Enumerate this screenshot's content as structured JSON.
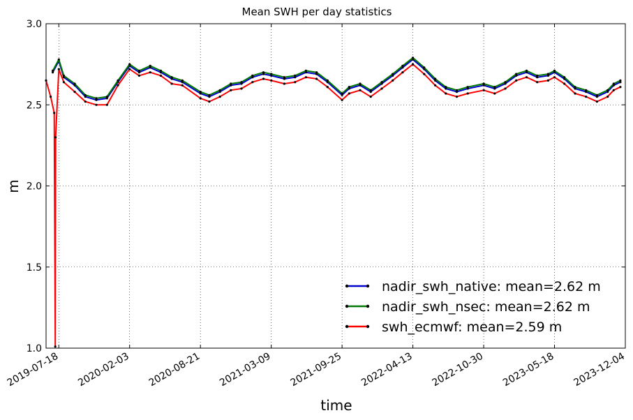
{
  "chart_data": {
    "type": "line",
    "title": "Mean SWH per day statistics",
    "xlabel": "time",
    "ylabel": "m",
    "x_ticks": [
      "2019-07-18",
      "2020-02-03",
      "2020-08-21",
      "2021-03-09",
      "2021-09-25",
      "2022-04-13",
      "2022-10-30",
      "2023-05-18",
      "2023-12-04"
    ],
    "y_ticks": [
      "1.0",
      "1.5",
      "2.0",
      "2.5",
      "3.0"
    ],
    "ylim": [
      1.0,
      3.0
    ],
    "xlim": [
      "2019-06-12",
      "2023-12-04"
    ],
    "grid": true,
    "legend_position": "lower-right",
    "series": [
      {
        "name": "nadir_swh_native: mean=2.62 m",
        "color": "#0000cc",
        "x": [
          "2019-07-01",
          "2019-07-18",
          "2019-08-01",
          "2019-09-01",
          "2019-10-01",
          "2019-11-01",
          "2019-12-01",
          "2020-01-01",
          "2020-02-03",
          "2020-03-01",
          "2020-04-01",
          "2020-05-01",
          "2020-06-01",
          "2020-07-01",
          "2020-08-21",
          "2020-09-15",
          "2020-10-15",
          "2020-11-15",
          "2020-12-15",
          "2021-01-15",
          "2021-02-15",
          "2021-03-09",
          "2021-04-15",
          "2021-05-15",
          "2021-06-15",
          "2021-07-15",
          "2021-08-15",
          "2021-09-25",
          "2021-10-15",
          "2021-11-15",
          "2021-12-15",
          "2022-01-15",
          "2022-02-15",
          "2022-03-15",
          "2022-04-13",
          "2022-05-15",
          "2022-06-15",
          "2022-07-15",
          "2022-08-15",
          "2022-09-15",
          "2022-10-30",
          "2022-11-30",
          "2022-12-30",
          "2023-01-30",
          "2023-02-28",
          "2023-03-30",
          "2023-04-30",
          "2023-05-18",
          "2023-06-15",
          "2023-07-15",
          "2023-08-15",
          "2023-09-15",
          "2023-10-15",
          "2023-11-01",
          "2023-11-20"
        ],
        "values": [
          2.7,
          2.77,
          2.67,
          2.62,
          2.55,
          2.53,
          2.54,
          2.64,
          2.74,
          2.7,
          2.73,
          2.7,
          2.66,
          2.64,
          2.57,
          2.55,
          2.58,
          2.62,
          2.63,
          2.67,
          2.69,
          2.68,
          2.66,
          2.67,
          2.7,
          2.69,
          2.64,
          2.56,
          2.6,
          2.62,
          2.58,
          2.63,
          2.68,
          2.73,
          2.78,
          2.72,
          2.65,
          2.6,
          2.58,
          2.6,
          2.62,
          2.6,
          2.63,
          2.68,
          2.7,
          2.67,
          2.68,
          2.7,
          2.66,
          2.6,
          2.58,
          2.55,
          2.58,
          2.62,
          2.64
        ]
      },
      {
        "name": "nadir_swh_nsec: mean=2.62 m",
        "color": "#007700",
        "x": [
          "2019-07-01",
          "2019-07-18",
          "2019-08-01",
          "2019-09-01",
          "2019-10-01",
          "2019-11-01",
          "2019-12-01",
          "2020-01-01",
          "2020-02-03",
          "2020-03-01",
          "2020-04-01",
          "2020-05-01",
          "2020-06-01",
          "2020-07-01",
          "2020-08-21",
          "2020-09-15",
          "2020-10-15",
          "2020-11-15",
          "2020-12-15",
          "2021-01-15",
          "2021-02-15",
          "2021-03-09",
          "2021-04-15",
          "2021-05-15",
          "2021-06-15",
          "2021-07-15",
          "2021-08-15",
          "2021-09-25",
          "2021-10-15",
          "2021-11-15",
          "2021-12-15",
          "2022-01-15",
          "2022-02-15",
          "2022-03-15",
          "2022-04-13",
          "2022-05-15",
          "2022-06-15",
          "2022-07-15",
          "2022-08-15",
          "2022-09-15",
          "2022-10-30",
          "2022-11-30",
          "2022-12-30",
          "2023-01-30",
          "2023-02-28",
          "2023-03-30",
          "2023-04-30",
          "2023-05-18",
          "2023-06-15",
          "2023-07-15",
          "2023-08-15",
          "2023-09-15",
          "2023-10-15",
          "2023-11-01",
          "2023-11-20"
        ],
        "values": [
          2.71,
          2.78,
          2.68,
          2.63,
          2.56,
          2.54,
          2.55,
          2.65,
          2.75,
          2.71,
          2.74,
          2.71,
          2.67,
          2.65,
          2.58,
          2.56,
          2.59,
          2.63,
          2.64,
          2.68,
          2.7,
          2.69,
          2.67,
          2.68,
          2.71,
          2.7,
          2.65,
          2.57,
          2.61,
          2.63,
          2.59,
          2.64,
          2.69,
          2.74,
          2.79,
          2.73,
          2.66,
          2.61,
          2.59,
          2.61,
          2.63,
          2.61,
          2.64,
          2.69,
          2.71,
          2.68,
          2.69,
          2.71,
          2.67,
          2.61,
          2.59,
          2.56,
          2.59,
          2.63,
          2.65
        ]
      },
      {
        "name": "swh_ecmwf: mean=2.59 m",
        "color": "#ff0000",
        "x": [
          "2019-06-12",
          "2019-06-25",
          "2019-07-05",
          "2019-07-08",
          "2019-07-09",
          "2019-07-18",
          "2019-08-01",
          "2019-09-01",
          "2019-10-01",
          "2019-11-01",
          "2019-12-01",
          "2020-01-01",
          "2020-02-03",
          "2020-03-01",
          "2020-04-01",
          "2020-05-01",
          "2020-06-01",
          "2020-07-01",
          "2020-08-21",
          "2020-09-15",
          "2020-10-15",
          "2020-11-15",
          "2020-12-15",
          "2021-01-15",
          "2021-02-15",
          "2021-03-09",
          "2021-04-15",
          "2021-05-15",
          "2021-06-15",
          "2021-07-15",
          "2021-08-15",
          "2021-09-25",
          "2021-10-15",
          "2021-11-15",
          "2021-12-15",
          "2022-01-15",
          "2022-02-15",
          "2022-03-15",
          "2022-04-13",
          "2022-05-15",
          "2022-06-15",
          "2022-07-15",
          "2022-08-15",
          "2022-09-15",
          "2022-10-30",
          "2022-11-30",
          "2022-12-30",
          "2023-01-30",
          "2023-02-28",
          "2023-03-30",
          "2023-04-30",
          "2023-05-18",
          "2023-06-15",
          "2023-07-15",
          "2023-08-15",
          "2023-09-15",
          "2023-10-15",
          "2023-11-01",
          "2023-11-20"
        ],
        "values": [
          2.65,
          2.55,
          2.45,
          1.01,
          2.3,
          2.72,
          2.64,
          2.58,
          2.52,
          2.5,
          2.5,
          2.62,
          2.72,
          2.68,
          2.7,
          2.68,
          2.63,
          2.62,
          2.54,
          2.52,
          2.55,
          2.59,
          2.6,
          2.64,
          2.66,
          2.65,
          2.63,
          2.64,
          2.67,
          2.66,
          2.61,
          2.53,
          2.57,
          2.59,
          2.55,
          2.6,
          2.65,
          2.7,
          2.75,
          2.69,
          2.62,
          2.57,
          2.55,
          2.57,
          2.59,
          2.57,
          2.6,
          2.65,
          2.67,
          2.64,
          2.65,
          2.67,
          2.63,
          2.57,
          2.55,
          2.52,
          2.55,
          2.59,
          2.61
        ]
      }
    ]
  }
}
